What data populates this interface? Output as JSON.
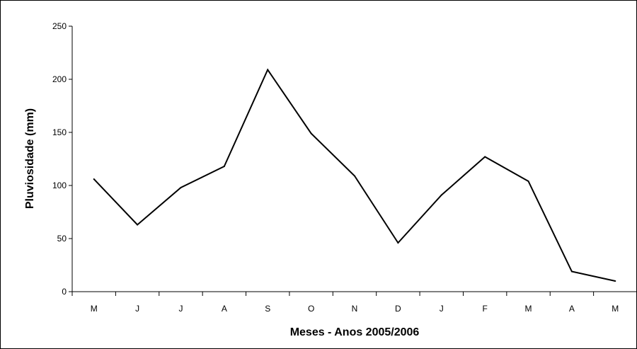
{
  "chart_data": {
    "type": "line",
    "xlabel": "Meses - Anos 2005/2006",
    "ylabel": "Pluviosidade (mm)",
    "categories": [
      "M",
      "J",
      "J",
      "A",
      "S",
      "O",
      "N",
      "D",
      "J",
      "F",
      "M",
      "A",
      "M"
    ],
    "series": [
      {
        "values": [
          106,
          63,
          98,
          118,
          209,
          149,
          109,
          46,
          91,
          127,
          104,
          19,
          10
        ]
      }
    ],
    "ylim": [
      0,
      250
    ],
    "yticks": [
      0,
      50,
      100,
      150,
      200,
      250
    ],
    "grid": false,
    "legend": "none",
    "line_color": "#000000"
  }
}
